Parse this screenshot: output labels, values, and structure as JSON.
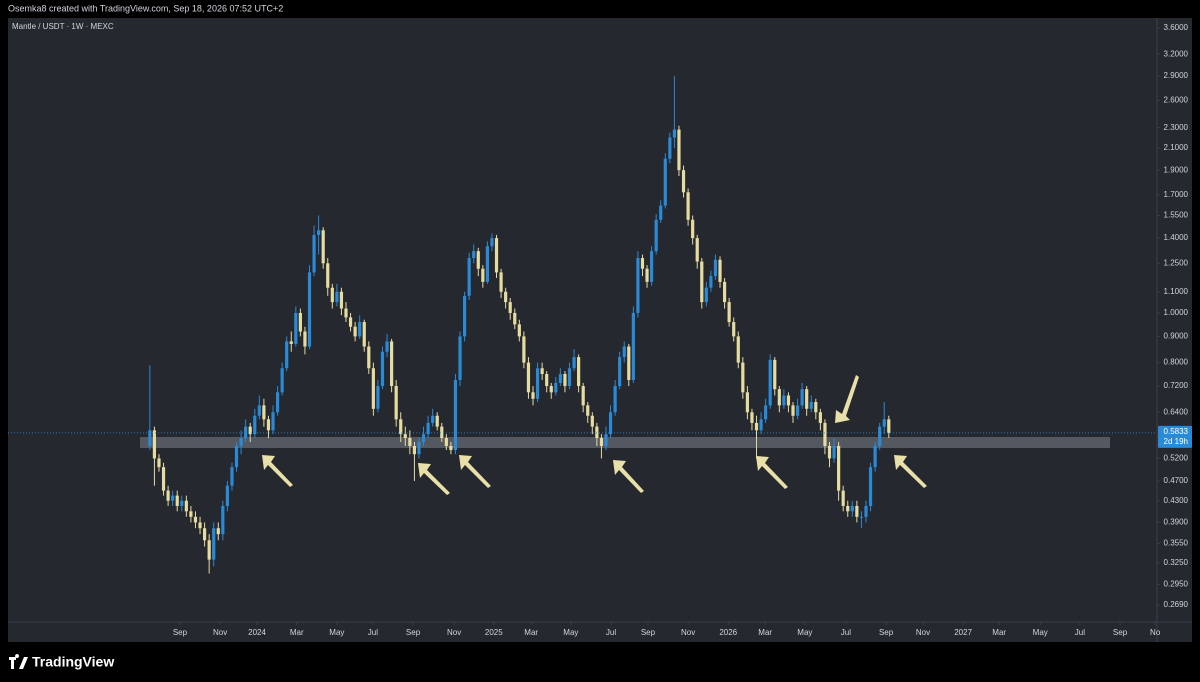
{
  "header": "Osemka8 created with TradingView.com, Sep 18, 2026 07:52 UTC+2",
  "footer": {
    "logo": "TradingView"
  },
  "chart_data": {
    "type": "candlestick",
    "title": "Mantle / USDT · 1W · MEXC",
    "up_color": "#2a8ad6",
    "down_color": "#e6dca0",
    "log_scale": true,
    "grid": false,
    "ylim": [
      0.2493,
      3.765
    ],
    "yticks": [
      {
        "value": 3.6,
        "label": "3.6000"
      },
      {
        "value": 3.2,
        "label": "3.2000"
      },
      {
        "value": 2.9,
        "label": "2.9000"
      },
      {
        "value": 2.6,
        "label": "2.6000"
      },
      {
        "value": 2.3,
        "label": "2.3000"
      },
      {
        "value": 2.1,
        "label": "2.1000"
      },
      {
        "value": 1.9,
        "label": "1.9000"
      },
      {
        "value": 1.7,
        "label": "1.7000"
      },
      {
        "value": 1.55,
        "label": "1.5500"
      },
      {
        "value": 1.4,
        "label": "1.4000"
      },
      {
        "value": 1.25,
        "label": "1.2500"
      },
      {
        "value": 1.1,
        "label": "1.1000"
      },
      {
        "value": 1.0,
        "label": "1.0000"
      },
      {
        "value": 0.9,
        "label": "0.9000"
      },
      {
        "value": 0.8,
        "label": "0.8000"
      },
      {
        "value": 0.72,
        "label": "0.7200"
      },
      {
        "value": 0.64,
        "label": "0.6400"
      },
      {
        "value": 0.52,
        "label": "0.5200"
      },
      {
        "value": 0.47,
        "label": "0.4700"
      },
      {
        "value": 0.43,
        "label": "0.4300"
      },
      {
        "value": 0.39,
        "label": "0.3900"
      },
      {
        "value": 0.355,
        "label": "0.3550"
      },
      {
        "value": 0.325,
        "label": "0.3250"
      },
      {
        "value": 0.295,
        "label": "0.2950"
      },
      {
        "value": 0.269,
        "label": "0.2690"
      }
    ],
    "xlim": [
      -31.1,
      220.8
    ],
    "xticks": [
      {
        "value": 6.6,
        "label": "Sep"
      },
      {
        "value": 15.4,
        "label": "Nov"
      },
      {
        "value": 23.5,
        "label": "2024"
      },
      {
        "value": 32.2,
        "label": "Mar"
      },
      {
        "value": 41,
        "label": "May"
      },
      {
        "value": 48.9,
        "label": "Jul"
      },
      {
        "value": 57.7,
        "label": "Sep"
      },
      {
        "value": 66.7,
        "label": "Nov"
      },
      {
        "value": 75.4,
        "label": "2025"
      },
      {
        "value": 83.6,
        "label": "Mar"
      },
      {
        "value": 92.3,
        "label": "May"
      },
      {
        "value": 101.1,
        "label": "Jul"
      },
      {
        "value": 109.2,
        "label": "Sep"
      },
      {
        "value": 118,
        "label": "Nov"
      },
      {
        "value": 126.8,
        "label": "2026"
      },
      {
        "value": 134.9,
        "label": "Mar"
      },
      {
        "value": 143.6,
        "label": "May"
      },
      {
        "value": 152.6,
        "label": "Jul"
      },
      {
        "value": 161.4,
        "label": "Sep"
      },
      {
        "value": 169.5,
        "label": "Nov"
      },
      {
        "value": 178.3,
        "label": "2027"
      },
      {
        "value": 186.2,
        "label": "Mar"
      },
      {
        "value": 195.2,
        "label": "May"
      },
      {
        "value": 203.9,
        "label": "Jul"
      },
      {
        "value": 212.7,
        "label": "Sep"
      },
      {
        "value": 220.4,
        "label": "No"
      }
    ],
    "last_price": 0.5833,
    "countdown": "2d 19h",
    "ohlc": [
      [
        0.55,
        0.79,
        0.54,
        0.59
      ],
      [
        0.59,
        0.6,
        0.46,
        0.52
      ],
      [
        0.52,
        0.53,
        0.49,
        0.5
      ],
      [
        0.5,
        0.51,
        0.44,
        0.45
      ],
      [
        0.45,
        0.46,
        0.42,
        0.43
      ],
      [
        0.43,
        0.45,
        0.42,
        0.44
      ],
      [
        0.44,
        0.45,
        0.41,
        0.42
      ],
      [
        0.42,
        0.44,
        0.41,
        0.43
      ],
      [
        0.43,
        0.44,
        0.4,
        0.41
      ],
      [
        0.41,
        0.42,
        0.39,
        0.4
      ],
      [
        0.4,
        0.41,
        0.38,
        0.39
      ],
      [
        0.39,
        0.4,
        0.37,
        0.38
      ],
      [
        0.38,
        0.39,
        0.35,
        0.36
      ],
      [
        0.36,
        0.37,
        0.31,
        0.33
      ],
      [
        0.33,
        0.39,
        0.32,
        0.38
      ],
      [
        0.38,
        0.39,
        0.36,
        0.37
      ],
      [
        0.37,
        0.43,
        0.36,
        0.42
      ],
      [
        0.42,
        0.47,
        0.41,
        0.46
      ],
      [
        0.46,
        0.51,
        0.45,
        0.5
      ],
      [
        0.5,
        0.56,
        0.49,
        0.55
      ],
      [
        0.55,
        0.59,
        0.53,
        0.57
      ],
      [
        0.57,
        0.62,
        0.56,
        0.6
      ],
      [
        0.6,
        0.61,
        0.56,
        0.58
      ],
      [
        0.58,
        0.65,
        0.57,
        0.63
      ],
      [
        0.63,
        0.69,
        0.62,
        0.66
      ],
      [
        0.66,
        0.68,
        0.6,
        0.62
      ],
      [
        0.62,
        0.63,
        0.57,
        0.59
      ],
      [
        0.59,
        0.66,
        0.58,
        0.64
      ],
      [
        0.64,
        0.72,
        0.63,
        0.7
      ],
      [
        0.7,
        0.8,
        0.69,
        0.78
      ],
      [
        0.78,
        0.9,
        0.77,
        0.88
      ],
      [
        0.88,
        0.92,
        0.84,
        0.87
      ],
      [
        0.87,
        1.03,
        0.86,
        1.0
      ],
      [
        1.0,
        1.02,
        0.9,
        0.92
      ],
      [
        0.92,
        0.94,
        0.83,
        0.86
      ],
      [
        0.86,
        1.24,
        0.85,
        1.2
      ],
      [
        1.2,
        1.48,
        1.18,
        1.42
      ],
      [
        1.42,
        1.55,
        1.3,
        1.45
      ],
      [
        1.45,
        1.47,
        1.22,
        1.25
      ],
      [
        1.25,
        1.28,
        1.08,
        1.12
      ],
      [
        1.12,
        1.14,
        1.02,
        1.05
      ],
      [
        1.05,
        1.14,
        1.03,
        1.1
      ],
      [
        1.1,
        1.12,
        0.99,
        1.02
      ],
      [
        1.02,
        1.05,
        0.96,
        0.98
      ],
      [
        0.98,
        1.0,
        0.92,
        0.94
      ],
      [
        0.94,
        0.96,
        0.88,
        0.9
      ],
      [
        0.9,
        0.99,
        0.89,
        0.96
      ],
      [
        0.96,
        0.97,
        0.84,
        0.86
      ],
      [
        0.86,
        0.88,
        0.76,
        0.78
      ],
      [
        0.78,
        0.8,
        0.63,
        0.65
      ],
      [
        0.65,
        0.74,
        0.64,
        0.72
      ],
      [
        0.72,
        0.86,
        0.71,
        0.84
      ],
      [
        0.84,
        0.91,
        0.82,
        0.88
      ],
      [
        0.88,
        0.89,
        0.7,
        0.72
      ],
      [
        0.72,
        0.74,
        0.6,
        0.62
      ],
      [
        0.62,
        0.64,
        0.56,
        0.58
      ],
      [
        0.58,
        0.6,
        0.55,
        0.57
      ],
      [
        0.57,
        0.59,
        0.53,
        0.55
      ],
      [
        0.55,
        0.56,
        0.47,
        0.53
      ],
      [
        0.53,
        0.57,
        0.52,
        0.56
      ],
      [
        0.56,
        0.6,
        0.55,
        0.58
      ],
      [
        0.58,
        0.63,
        0.57,
        0.61
      ],
      [
        0.61,
        0.65,
        0.6,
        0.63
      ],
      [
        0.63,
        0.64,
        0.59,
        0.6
      ],
      [
        0.6,
        0.61,
        0.56,
        0.57
      ],
      [
        0.57,
        0.58,
        0.54,
        0.55
      ],
      [
        0.55,
        0.56,
        0.53,
        0.54
      ],
      [
        0.54,
        0.76,
        0.53,
        0.74
      ],
      [
        0.74,
        0.92,
        0.72,
        0.9
      ],
      [
        0.9,
        1.1,
        0.88,
        1.08
      ],
      [
        1.08,
        1.31,
        1.06,
        1.28
      ],
      [
        1.28,
        1.36,
        1.25,
        1.32
      ],
      [
        1.32,
        1.34,
        1.18,
        1.22
      ],
      [
        1.22,
        1.24,
        1.12,
        1.15
      ],
      [
        1.15,
        1.38,
        1.14,
        1.35
      ],
      [
        1.35,
        1.43,
        1.32,
        1.4
      ],
      [
        1.4,
        1.42,
        1.17,
        1.2
      ],
      [
        1.2,
        1.22,
        1.07,
        1.1
      ],
      [
        1.1,
        1.12,
        1.02,
        1.05
      ],
      [
        1.05,
        1.07,
        0.97,
        1.0
      ],
      [
        1.0,
        1.02,
        0.93,
        0.95
      ],
      [
        0.95,
        0.97,
        0.88,
        0.9
      ],
      [
        0.9,
        0.92,
        0.78,
        0.8
      ],
      [
        0.8,
        0.82,
        0.68,
        0.7
      ],
      [
        0.7,
        0.72,
        0.66,
        0.68
      ],
      [
        0.68,
        0.8,
        0.67,
        0.78
      ],
      [
        0.78,
        0.8,
        0.74,
        0.76
      ],
      [
        0.76,
        0.77,
        0.7,
        0.72
      ],
      [
        0.72,
        0.73,
        0.68,
        0.7
      ],
      [
        0.7,
        0.75,
        0.69,
        0.73
      ],
      [
        0.73,
        0.78,
        0.72,
        0.76
      ],
      [
        0.76,
        0.77,
        0.7,
        0.72
      ],
      [
        0.72,
        0.8,
        0.71,
        0.78
      ],
      [
        0.78,
        0.85,
        0.77,
        0.82
      ],
      [
        0.82,
        0.83,
        0.7,
        0.72
      ],
      [
        0.72,
        0.73,
        0.64,
        0.66
      ],
      [
        0.66,
        0.67,
        0.61,
        0.63
      ],
      [
        0.63,
        0.64,
        0.58,
        0.6
      ],
      [
        0.6,
        0.61,
        0.55,
        0.57
      ],
      [
        0.57,
        0.58,
        0.52,
        0.55
      ],
      [
        0.55,
        0.6,
        0.54,
        0.58
      ],
      [
        0.58,
        0.66,
        0.57,
        0.64
      ],
      [
        0.64,
        0.74,
        0.63,
        0.72
      ],
      [
        0.72,
        0.84,
        0.71,
        0.82
      ],
      [
        0.82,
        0.88,
        0.8,
        0.86
      ],
      [
        0.86,
        0.87,
        0.72,
        0.74
      ],
      [
        0.74,
        1.03,
        0.73,
        1.0
      ],
      [
        1.0,
        1.32,
        0.98,
        1.28
      ],
      [
        1.28,
        1.3,
        1.18,
        1.22
      ],
      [
        1.22,
        1.24,
        1.12,
        1.15
      ],
      [
        1.15,
        1.35,
        1.13,
        1.32
      ],
      [
        1.32,
        1.56,
        1.3,
        1.52
      ],
      [
        1.52,
        1.66,
        1.5,
        1.62
      ],
      [
        1.62,
        2.05,
        1.6,
        2.0
      ],
      [
        2.0,
        2.25,
        1.96,
        2.2
      ],
      [
        2.2,
        2.9,
        2.1,
        2.28
      ],
      [
        2.28,
        2.32,
        1.85,
        1.9
      ],
      [
        1.9,
        1.94,
        1.68,
        1.72
      ],
      [
        1.72,
        1.75,
        1.48,
        1.52
      ],
      [
        1.52,
        1.55,
        1.36,
        1.4
      ],
      [
        1.4,
        1.42,
        1.22,
        1.26
      ],
      [
        1.26,
        1.28,
        1.02,
        1.05
      ],
      [
        1.05,
        1.15,
        1.03,
        1.12
      ],
      [
        1.12,
        1.21,
        1.1,
        1.18
      ],
      [
        1.18,
        1.3,
        1.16,
        1.27
      ],
      [
        1.27,
        1.29,
        1.12,
        1.15
      ],
      [
        1.15,
        1.17,
        1.02,
        1.05
      ],
      [
        1.05,
        1.07,
        0.94,
        0.96
      ],
      [
        0.96,
        0.98,
        0.88,
        0.9
      ],
      [
        0.9,
        0.92,
        0.78,
        0.8
      ],
      [
        0.8,
        0.82,
        0.68,
        0.7
      ],
      [
        0.7,
        0.72,
        0.62,
        0.64
      ],
      [
        0.64,
        0.65,
        0.59,
        0.61
      ],
      [
        0.61,
        0.63,
        0.52,
        0.59
      ],
      [
        0.59,
        0.64,
        0.58,
        0.62
      ],
      [
        0.62,
        0.68,
        0.61,
        0.66
      ],
      [
        0.66,
        0.83,
        0.65,
        0.81
      ],
      [
        0.81,
        0.82,
        0.69,
        0.71
      ],
      [
        0.71,
        0.72,
        0.64,
        0.66
      ],
      [
        0.66,
        0.71,
        0.65,
        0.69
      ],
      [
        0.69,
        0.7,
        0.64,
        0.66
      ],
      [
        0.66,
        0.67,
        0.61,
        0.63
      ],
      [
        0.63,
        0.68,
        0.62,
        0.66
      ],
      [
        0.66,
        0.73,
        0.65,
        0.71
      ],
      [
        0.71,
        0.72,
        0.63,
        0.65
      ],
      [
        0.65,
        0.69,
        0.64,
        0.67
      ],
      [
        0.67,
        0.68,
        0.62,
        0.64
      ],
      [
        0.64,
        0.65,
        0.59,
        0.61
      ],
      [
        0.61,
        0.62,
        0.53,
        0.55
      ],
      [
        0.55,
        0.56,
        0.5,
        0.52
      ],
      [
        0.52,
        0.57,
        0.51,
        0.55
      ],
      [
        0.55,
        0.56,
        0.43,
        0.45
      ],
      [
        0.45,
        0.46,
        0.41,
        0.42
      ],
      [
        0.42,
        0.43,
        0.4,
        0.41
      ],
      [
        0.41,
        0.43,
        0.4,
        0.42
      ],
      [
        0.42,
        0.43,
        0.39,
        0.4
      ],
      [
        0.4,
        0.41,
        0.38,
        0.4
      ],
      [
        0.4,
        0.43,
        0.39,
        0.42
      ],
      [
        0.42,
        0.51,
        0.41,
        0.5
      ],
      [
        0.5,
        0.56,
        0.49,
        0.55
      ],
      [
        0.55,
        0.61,
        0.54,
        0.6
      ],
      [
        0.6,
        0.67,
        0.58,
        0.62
      ],
      [
        0.62,
        0.63,
        0.57,
        0.5833
      ]
    ]
  }
}
